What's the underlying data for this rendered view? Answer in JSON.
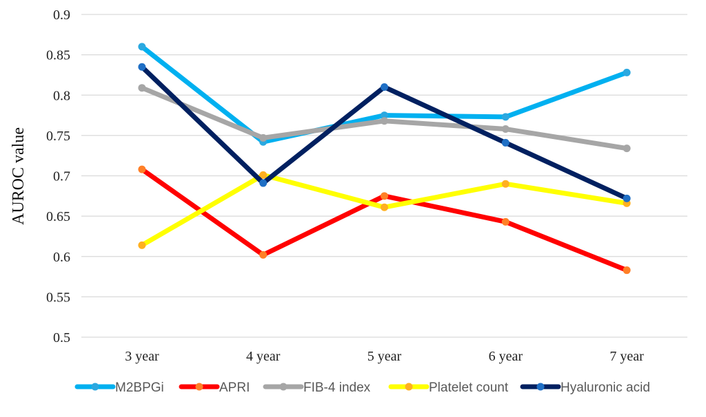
{
  "chart_data": {
    "type": "line",
    "title": "",
    "xlabel": "",
    "ylabel": "AUROC value",
    "categories": [
      "3 year",
      "4 year",
      "5 year",
      "6 year",
      "7 year"
    ],
    "ylim": [
      0.5,
      0.9
    ],
    "yticks": [
      "0.5",
      "0.55",
      "0.6",
      "0.65",
      "0.7",
      "0.75",
      "0.8",
      "0.85",
      "0.9"
    ],
    "ytick_values": [
      0.5,
      0.55,
      0.6,
      0.65,
      0.7,
      0.75,
      0.8,
      0.85,
      0.9
    ],
    "grid": true,
    "legend_position": "bottom",
    "series": [
      {
        "name": "M2BPGi",
        "color": "#00B0F0",
        "marker_color": "#2BA8E0",
        "values": [
          0.86,
          0.742,
          0.775,
          0.773,
          0.828
        ]
      },
      {
        "name": "APRI",
        "color": "#FF0000",
        "marker_color": "#FF7F27",
        "values": [
          0.708,
          0.602,
          0.675,
          0.643,
          0.583
        ]
      },
      {
        "name": "FIB-4 index",
        "color": "#A6A6A6",
        "marker_color": "#A6A6A6",
        "values": [
          0.809,
          0.747,
          0.768,
          0.758,
          0.734
        ]
      },
      {
        "name": "Platelet count",
        "color": "#FFFF00",
        "marker_color": "#FFB020",
        "values": [
          0.614,
          0.701,
          0.661,
          0.69,
          0.666
        ]
      },
      {
        "name": "Hyaluronic acid",
        "color": "#002060",
        "marker_color": "#1F6FC5",
        "values": [
          0.835,
          0.691,
          0.81,
          0.741,
          0.672
        ]
      }
    ]
  }
}
